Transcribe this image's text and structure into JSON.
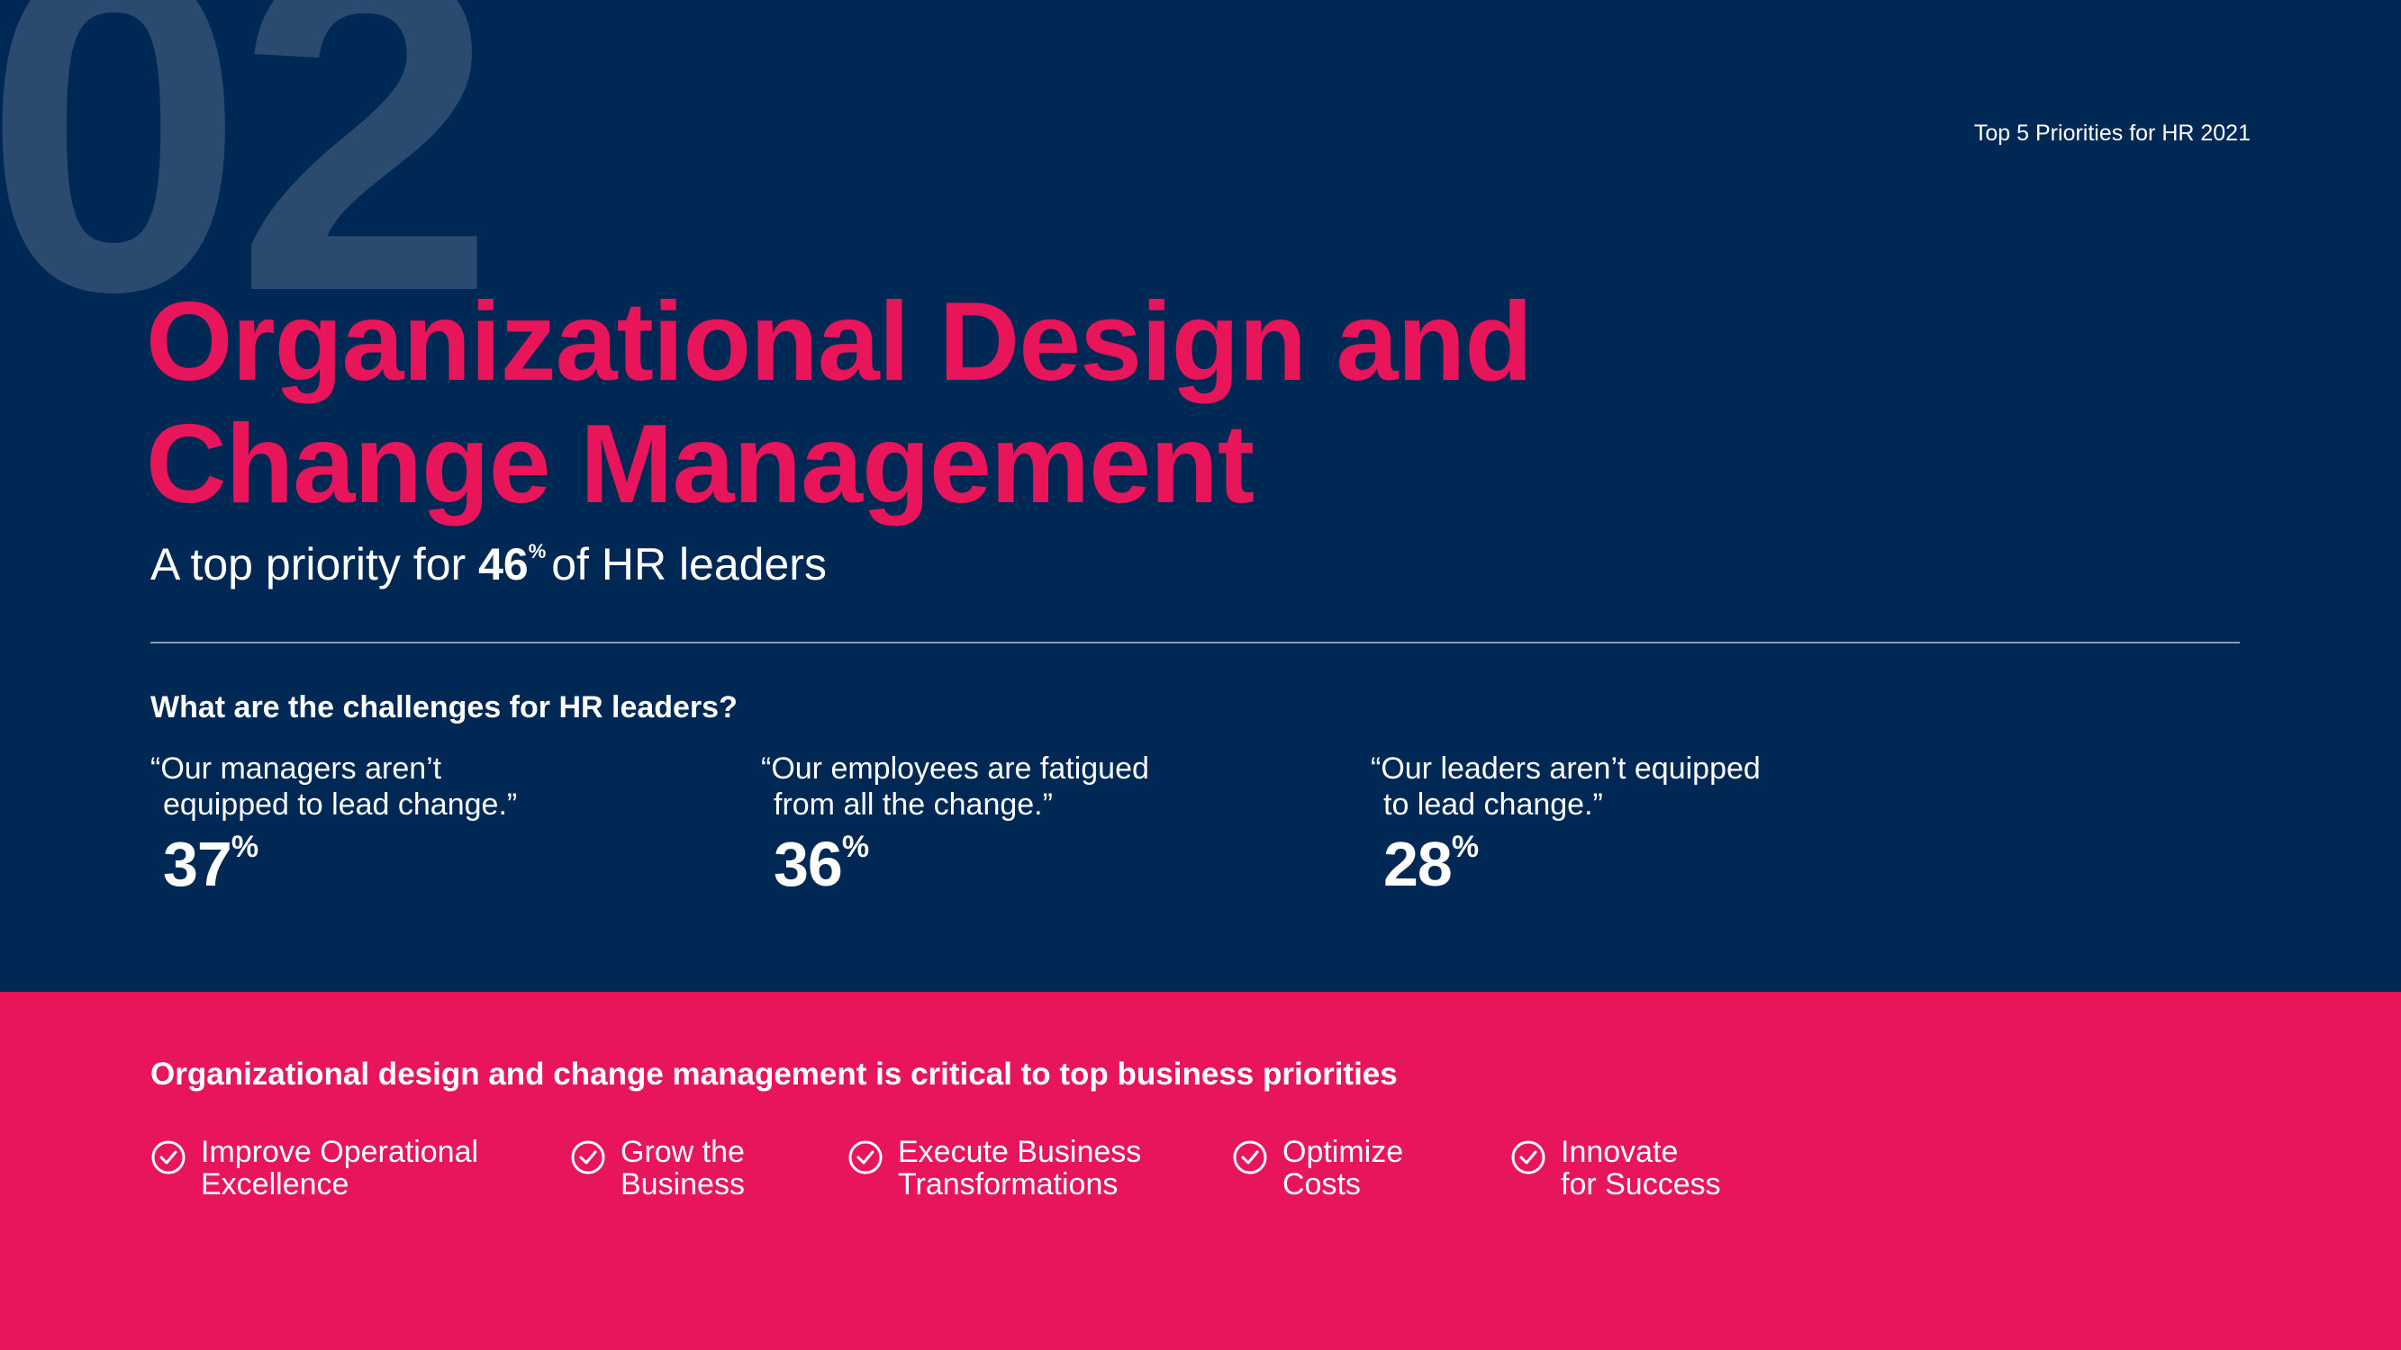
{
  "section_number": "02",
  "header_label": "Top 5 Priorities for HR 2021",
  "title": {
    "line1": "Organizational Design and",
    "line2": "Change Management"
  },
  "subtitle": {
    "prefix": "A top priority for",
    "value": "46",
    "unit": "%",
    "suffix": "of HR leaders"
  },
  "challenges": {
    "question": "What are the challenges for HR leaders?",
    "items": [
      {
        "quote_line1": "“Our managers aren’t",
        "quote_line2": "equipped to lead change.”",
        "value": "37",
        "unit": "%"
      },
      {
        "quote_line1": "“Our employees are fatigued",
        "quote_line2": "from all the change.”",
        "value": "36",
        "unit": "%"
      },
      {
        "quote_line1": "“Our leaders aren’t equipped",
        "quote_line2": "to lead change.”",
        "value": "28",
        "unit": "%"
      }
    ]
  },
  "priorities": {
    "heading": "Organizational design and change management is critical to top business priorities",
    "items": [
      {
        "line1": "Improve Operational",
        "line2": "Excellence",
        "icon": "check-circle-icon"
      },
      {
        "line1": "Grow the",
        "line2": "Business",
        "icon": "check-circle-icon"
      },
      {
        "line1": "Execute Business",
        "line2": "Transformations",
        "icon": "check-circle-icon"
      },
      {
        "line1": "Optimize",
        "line2": "Costs",
        "icon": "check-circle-icon"
      },
      {
        "line1": "Innovate",
        "line2": "for Success",
        "icon": "check-circle-icon"
      }
    ]
  },
  "colors": {
    "navy": "#002855",
    "magenta": "#e8155a",
    "faded_number": "#2a4a70",
    "text": "#ffffff"
  }
}
